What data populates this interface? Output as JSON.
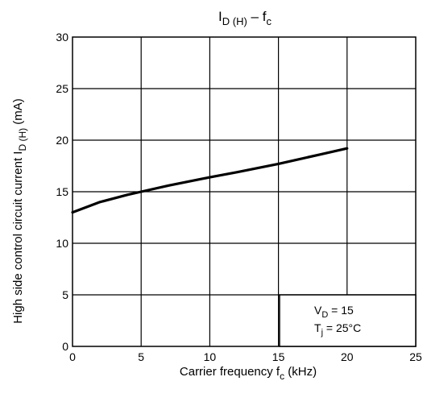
{
  "chart_data": {
    "type": "line",
    "title": {
      "main": "I",
      "main_sub": "D (H)",
      "dash": " – f",
      "dash_sub": "c"
    },
    "xlabel": {
      "text": "Carrier frequency   f",
      "sub": "c",
      "unit": "(kHz)"
    },
    "ylabel": {
      "text": "High side control circuit current   I",
      "sub": "D (H)",
      "unit": "(mA)"
    },
    "xlim": [
      0,
      25
    ],
    "ylim": [
      0,
      30
    ],
    "xticks": [
      "0",
      "5",
      "10",
      "15",
      "20",
      "25"
    ],
    "yticks": [
      "0",
      "5",
      "10",
      "15",
      "20",
      "25",
      "30"
    ],
    "grid": true,
    "series": [
      {
        "x": [
          0,
          2,
          4,
          5,
          7,
          10,
          12,
          15,
          18,
          20
        ],
        "y": [
          13.0,
          14.0,
          14.7,
          15.0,
          15.6,
          16.4,
          16.9,
          17.7,
          18.6,
          19.2
        ],
        "color": "#000000"
      }
    ],
    "annotation": {
      "line1_main": "V",
      "line1_sub": "D",
      "line1_rest": " = 15",
      "line2_main": "T",
      "line2_sub": "j",
      "line2_rest": " = 25°C"
    }
  }
}
